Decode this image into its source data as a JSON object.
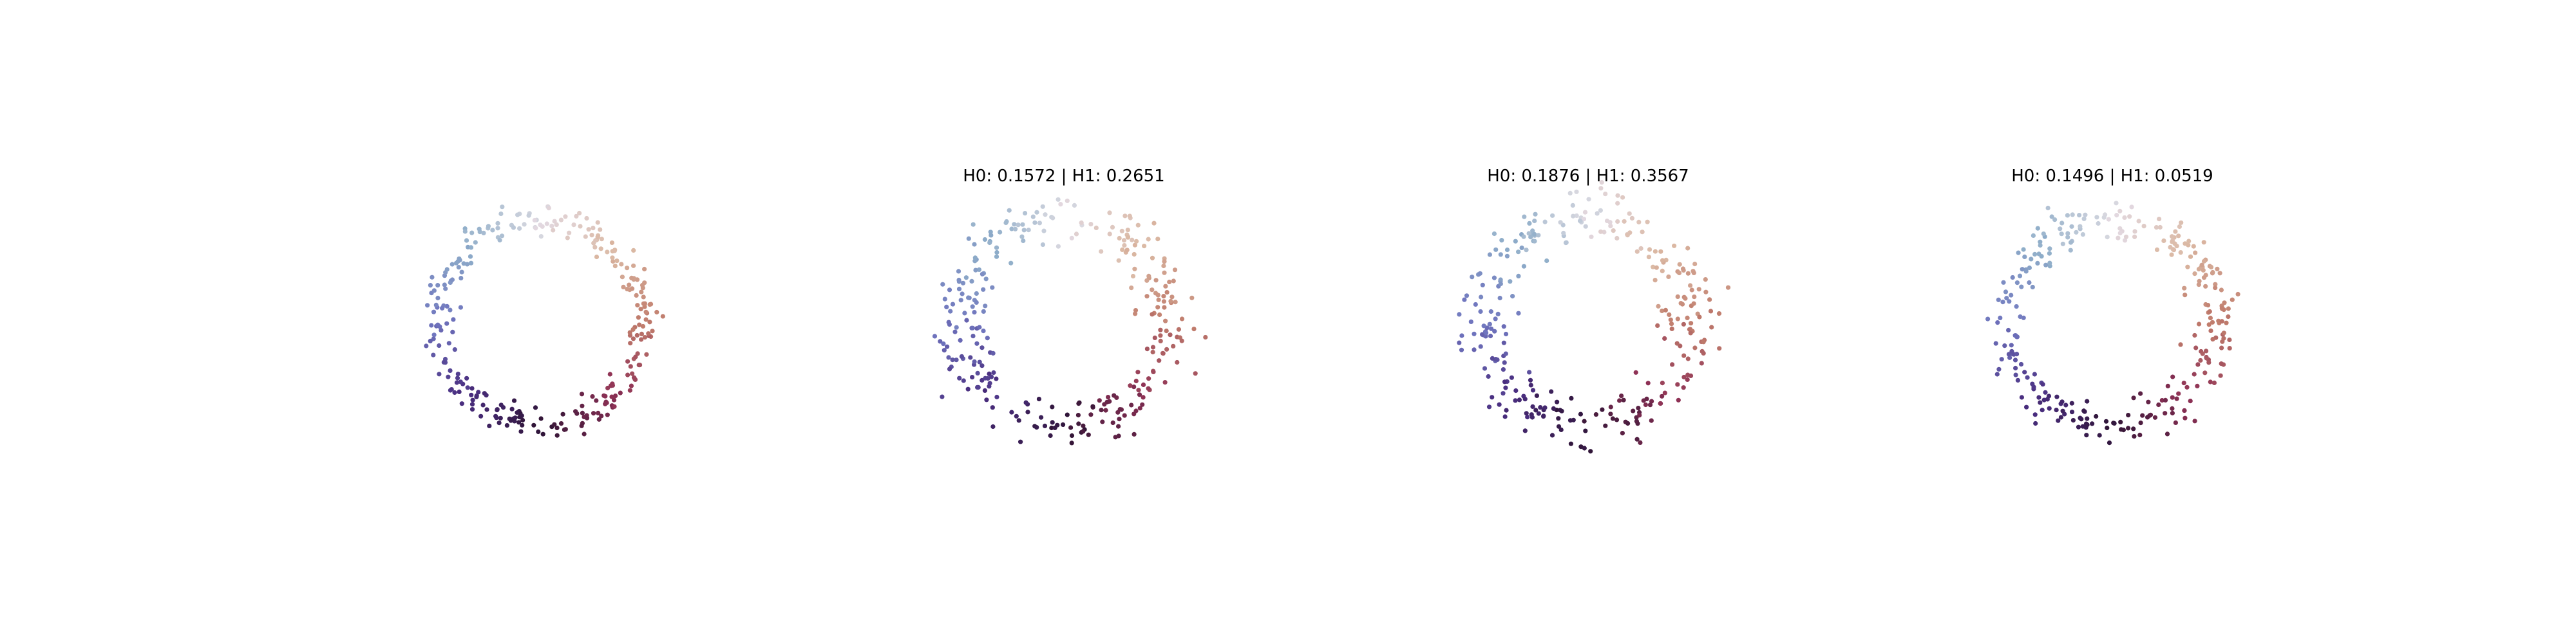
{
  "figure": {
    "background": "#ffffff",
    "colormap": "twilight",
    "colormap_stops": [
      "#e2d9e2",
      "#dbb9a4",
      "#c07c6c",
      "#8e3155",
      "#2f1436",
      "#4a2e80",
      "#6f74be",
      "#8eadc9",
      "#dad9e0"
    ]
  },
  "chart_data": [
    {
      "type": "scatter",
      "title": "",
      "axes_visible": false,
      "grid": false,
      "xlim": [
        -1.5,
        1.5
      ],
      "ylim": [
        -1.5,
        1.5
      ],
      "points": {
        "count": 300,
        "shape": "noisy-ring",
        "radius": 1.0,
        "noise": 0.1,
        "seed": 11
      }
    },
    {
      "type": "scatter",
      "title": "H0: 0.1572 | H1: 0.2651",
      "axes_visible": false,
      "grid": false,
      "xlim": [
        -1.5,
        1.5
      ],
      "ylim": [
        -1.5,
        1.5
      ],
      "points": {
        "count": 300,
        "shape": "noisy-ring",
        "radius": 1.0,
        "noise": 0.16,
        "seed": 23
      }
    },
    {
      "type": "scatter",
      "title": "H0: 0.1876 | H1: 0.3567",
      "axes_visible": false,
      "grid": false,
      "xlim": [
        -1.5,
        1.5
      ],
      "ylim": [
        -1.5,
        1.5
      ],
      "points": {
        "count": 300,
        "shape": "noisy-ring",
        "radius": 1.0,
        "noise": 0.18,
        "seed": 37
      }
    },
    {
      "type": "scatter",
      "title": "H0: 0.1496 | H1: 0.0519",
      "axes_visible": false,
      "grid": false,
      "xlim": [
        -1.5,
        1.5
      ],
      "ylim": [
        -1.5,
        1.5
      ],
      "points": {
        "count": 300,
        "shape": "noisy-ring",
        "radius": 1.0,
        "noise": 0.12,
        "seed": 53
      }
    }
  ]
}
